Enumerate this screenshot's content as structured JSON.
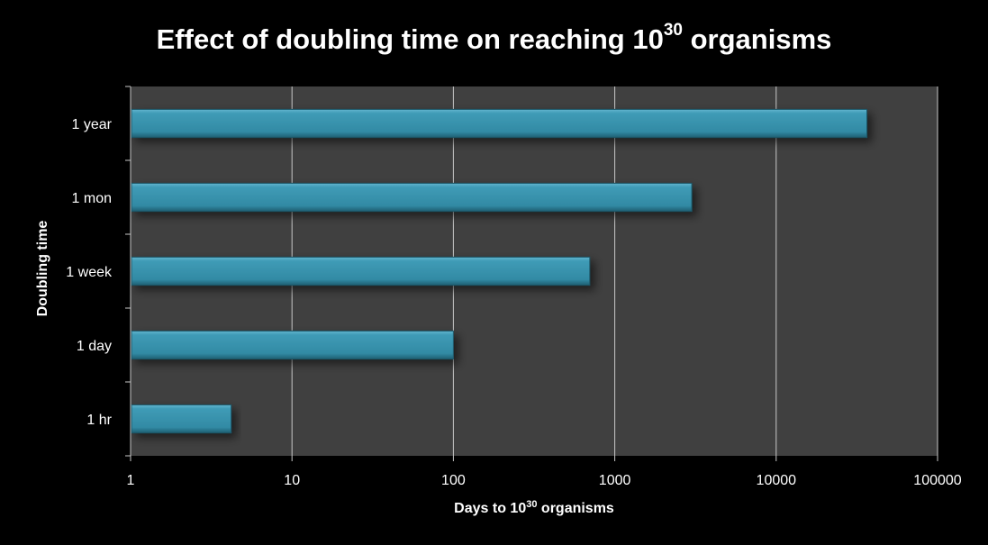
{
  "chart_data": {
    "type": "bar",
    "orientation": "horizontal",
    "title": {
      "text": "Effect of doubling time on reaching 10",
      "superscript": "30",
      "suffix": " organisms"
    },
    "ylabel": "Doubling time",
    "xlabel": {
      "text": "Days to 10",
      "superscript": "30",
      "suffix": " organisms"
    },
    "x_scale": "log",
    "xlim": [
      1,
      100000
    ],
    "x_ticks": [
      "1",
      "10",
      "100",
      "1000",
      "10000",
      "100000"
    ],
    "categories": [
      "1 year",
      "1 mon",
      "1 week",
      "1 day",
      "1 hr"
    ],
    "values": [
      36500,
      3000,
      700,
      100,
      4.2
    ],
    "grid": "vertical",
    "colors": {
      "background": "#000000",
      "plot_area": "#404040",
      "bar": "#3a93ad",
      "text": "#ffffff",
      "gridline": "#c8c8c8"
    }
  }
}
